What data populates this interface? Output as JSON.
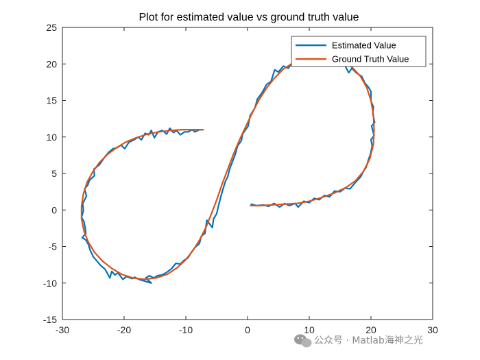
{
  "chart_data": {
    "type": "line",
    "title": "Plot for estimated value vs ground truth value",
    "xlabel": "",
    "ylabel": "",
    "xlim": [
      -30,
      30
    ],
    "ylim": [
      -15,
      25
    ],
    "xticks": [
      -30,
      -20,
      -10,
      0,
      10,
      20,
      30
    ],
    "yticks": [
      -15,
      -10,
      -5,
      0,
      5,
      10,
      15,
      20,
      25
    ],
    "grid": false,
    "legend_position": "top-right",
    "series": [
      {
        "name": "Estimated Value",
        "color": "#0072BD",
        "points": [
          [
            0.6,
            0.8
          ],
          [
            1.5,
            0.6
          ],
          [
            2.6,
            0.7
          ],
          [
            3.4,
            0.5
          ],
          [
            4.3,
            0.9
          ],
          [
            5.2,
            0.4
          ],
          [
            6.0,
            0.9
          ],
          [
            6.8,
            0.6
          ],
          [
            7.7,
            0.9
          ],
          [
            8.2,
            0.4
          ],
          [
            9.1,
            1.2
          ],
          [
            10.0,
            1.0
          ],
          [
            10.8,
            1.6
          ],
          [
            11.6,
            1.4
          ],
          [
            12.5,
            2.0
          ],
          [
            13.3,
            1.8
          ],
          [
            14.1,
            2.6
          ],
          [
            15.0,
            2.5
          ],
          [
            15.8,
            3.0
          ],
          [
            16.6,
            2.9
          ],
          [
            17.5,
            3.8
          ],
          [
            18.3,
            4.5
          ],
          [
            18.9,
            5.5
          ],
          [
            19.2,
            5.8
          ],
          [
            19.6,
            6.9
          ],
          [
            19.9,
            7.6
          ],
          [
            20.2,
            8.8
          ],
          [
            20.0,
            9.6
          ],
          [
            20.5,
            10.2
          ],
          [
            20.1,
            11.5
          ],
          [
            20.6,
            12.0
          ],
          [
            20.3,
            13.2
          ],
          [
            20.4,
            14.1
          ],
          [
            20.0,
            14.9
          ],
          [
            20.0,
            16.2
          ],
          [
            19.6,
            16.8
          ],
          [
            19.0,
            17.4
          ],
          [
            18.5,
            18.3
          ],
          [
            17.6,
            18.8
          ],
          [
            16.9,
            19.4
          ],
          [
            16.4,
            18.8
          ],
          [
            15.5,
            20.2
          ],
          [
            14.8,
            20.4
          ],
          [
            14.0,
            20.7
          ],
          [
            13.0,
            20.8
          ],
          [
            12.0,
            20.6
          ],
          [
            11.0,
            20.9
          ],
          [
            10.0,
            20.7
          ],
          [
            9.0,
            20.3
          ],
          [
            8.0,
            20.6
          ],
          [
            7.2,
            20.1
          ],
          [
            6.6,
            19.4
          ],
          [
            5.8,
            19.7
          ],
          [
            5.0,
            18.9
          ],
          [
            4.4,
            19.2
          ],
          [
            3.8,
            17.6
          ],
          [
            3.1,
            17.2
          ],
          [
            2.3,
            16.0
          ],
          [
            1.6,
            15.2
          ],
          [
            1.2,
            14.0
          ],
          [
            0.4,
            12.9
          ],
          [
            0.1,
            11.5
          ],
          [
            -0.8,
            10.4
          ],
          [
            -1.0,
            9.5
          ],
          [
            -1.6,
            8.8
          ],
          [
            -2.0,
            7.6
          ],
          [
            -2.5,
            6.5
          ],
          [
            -2.9,
            5.6
          ],
          [
            -3.2,
            4.6
          ],
          [
            -3.6,
            3.9
          ],
          [
            -4.0,
            2.8
          ],
          [
            -4.4,
            1.6
          ],
          [
            -4.7,
            0.6
          ],
          [
            -5.0,
            -0.5
          ],
          [
            -5.5,
            -1.2
          ],
          [
            -5.7,
            -2.4
          ],
          [
            -6.6,
            -1.4
          ],
          [
            -6.9,
            -3.2
          ],
          [
            -7.5,
            -3.6
          ],
          [
            -7.8,
            -4.6
          ],
          [
            -8.6,
            -5.2
          ],
          [
            -9.1,
            -5.8
          ],
          [
            -9.7,
            -6.6
          ],
          [
            -10.3,
            -6.9
          ],
          [
            -10.9,
            -7.4
          ],
          [
            -11.6,
            -7.3
          ],
          [
            -12.4,
            -8.1
          ],
          [
            -13.2,
            -8.6
          ],
          [
            -13.9,
            -8.9
          ],
          [
            -14.6,
            -9.0
          ],
          [
            -15.2,
            -9.3
          ],
          [
            -15.9,
            -9.0
          ],
          [
            -16.5,
            -9.3
          ],
          [
            -15.6,
            -10.0
          ],
          [
            -17.6,
            -9.5
          ],
          [
            -18.3,
            -9.2
          ],
          [
            -18.7,
            -9.4
          ],
          [
            -19.6,
            -9.1
          ],
          [
            -20.2,
            -9.5
          ],
          [
            -21.0,
            -8.6
          ],
          [
            -21.5,
            -8.9
          ],
          [
            -22.0,
            -8.4
          ],
          [
            -22.3,
            -9.3
          ],
          [
            -23.1,
            -8.1
          ],
          [
            -23.8,
            -7.6
          ],
          [
            -24.5,
            -6.9
          ],
          [
            -25.0,
            -6.4
          ],
          [
            -25.5,
            -5.5
          ],
          [
            -25.8,
            -4.7
          ],
          [
            -26.2,
            -4.1
          ],
          [
            -26.8,
            -3.8
          ],
          [
            -26.2,
            -3.2
          ],
          [
            -26.3,
            -2.5
          ],
          [
            -26.5,
            -1.6
          ],
          [
            -26.9,
            -1.0
          ],
          [
            -26.6,
            -0.1
          ],
          [
            -26.7,
            0.9
          ],
          [
            -26.1,
            1.9
          ],
          [
            -26.4,
            2.9
          ],
          [
            -25.9,
            3.4
          ],
          [
            -25.6,
            4.1
          ],
          [
            -24.8,
            4.7
          ],
          [
            -24.9,
            5.6
          ],
          [
            -24.0,
            6.2
          ],
          [
            -23.5,
            6.8
          ],
          [
            -23.1,
            7.3
          ],
          [
            -22.5,
            7.9
          ],
          [
            -21.8,
            8.4
          ],
          [
            -21.2,
            8.5
          ],
          [
            -20.5,
            8.9
          ],
          [
            -19.9,
            8.4
          ],
          [
            -19.2,
            9.3
          ],
          [
            -18.4,
            9.6
          ],
          [
            -17.7,
            10.0
          ],
          [
            -17.2,
            9.6
          ],
          [
            -16.6,
            10.5
          ],
          [
            -16.0,
            10.3
          ],
          [
            -15.6,
            10.9
          ],
          [
            -15.1,
            9.9
          ],
          [
            -14.5,
            10.7
          ],
          [
            -13.8,
            10.9
          ],
          [
            -13.1,
            10.4
          ],
          [
            -12.6,
            11.2
          ],
          [
            -12.0,
            10.6
          ],
          [
            -11.5,
            10.9
          ],
          [
            -10.9,
            10.3
          ],
          [
            -10.2,
            10.7
          ],
          [
            -9.6,
            10.7
          ],
          [
            -9.0,
            11.0
          ],
          [
            -8.5,
            10.7
          ],
          [
            -7.8,
            11.0
          ],
          [
            -7.2,
            11.0
          ]
        ]
      },
      {
        "name": "Ground Truth Value",
        "color": "#D95319",
        "points": [
          [
            0.5,
            0.6
          ],
          [
            2.0,
            0.6
          ],
          [
            4.0,
            0.7
          ],
          [
            6.0,
            0.8
          ],
          [
            8.0,
            0.9
          ],
          [
            10.0,
            1.2
          ],
          [
            12.0,
            1.7
          ],
          [
            14.0,
            2.3
          ],
          [
            16.0,
            3.1
          ],
          [
            17.5,
            4.0
          ],
          [
            18.8,
            5.3
          ],
          [
            19.8,
            7.0
          ],
          [
            20.4,
            9.0
          ],
          [
            20.5,
            11.0
          ],
          [
            20.4,
            13.0
          ],
          [
            20.0,
            15.0
          ],
          [
            19.3,
            16.8
          ],
          [
            18.3,
            18.3
          ],
          [
            17.0,
            19.5
          ],
          [
            15.5,
            20.3
          ],
          [
            13.5,
            20.8
          ],
          [
            11.5,
            21.0
          ],
          [
            9.5,
            20.8
          ],
          [
            7.5,
            20.2
          ],
          [
            5.8,
            19.3
          ],
          [
            4.3,
            18.0
          ],
          [
            3.0,
            16.6
          ],
          [
            1.8,
            15.0
          ],
          [
            0.7,
            13.2
          ],
          [
            -0.3,
            11.4
          ],
          [
            -1.3,
            9.6
          ],
          [
            -2.3,
            7.6
          ],
          [
            -3.2,
            5.6
          ],
          [
            -4.1,
            3.6
          ],
          [
            -4.9,
            1.6
          ],
          [
            -5.8,
            -0.4
          ],
          [
            -6.7,
            -2.3
          ],
          [
            -7.7,
            -4.0
          ],
          [
            -8.8,
            -5.5
          ],
          [
            -10.0,
            -6.8
          ],
          [
            -11.4,
            -7.9
          ],
          [
            -13.0,
            -8.8
          ],
          [
            -14.8,
            -9.3
          ],
          [
            -16.7,
            -9.5
          ],
          [
            -18.6,
            -9.3
          ],
          [
            -20.4,
            -8.8
          ],
          [
            -22.0,
            -8.0
          ],
          [
            -23.5,
            -7.0
          ],
          [
            -24.8,
            -5.8
          ],
          [
            -25.8,
            -4.4
          ],
          [
            -26.5,
            -2.9
          ],
          [
            -26.9,
            -1.2
          ],
          [
            -26.9,
            0.5
          ],
          [
            -26.6,
            2.2
          ],
          [
            -26.0,
            3.8
          ],
          [
            -25.1,
            5.2
          ],
          [
            -24.0,
            6.5
          ],
          [
            -22.7,
            7.6
          ],
          [
            -21.3,
            8.5
          ],
          [
            -19.7,
            9.3
          ],
          [
            -18.0,
            9.9
          ],
          [
            -16.2,
            10.4
          ],
          [
            -14.3,
            10.7
          ],
          [
            -12.4,
            10.9
          ],
          [
            -10.5,
            11.0
          ],
          [
            -8.6,
            11.0
          ],
          [
            -7.2,
            11.0
          ]
        ]
      }
    ]
  },
  "watermark": {
    "text": "公众号 · Matlab海神之光",
    "icon": "wechat-icon"
  }
}
